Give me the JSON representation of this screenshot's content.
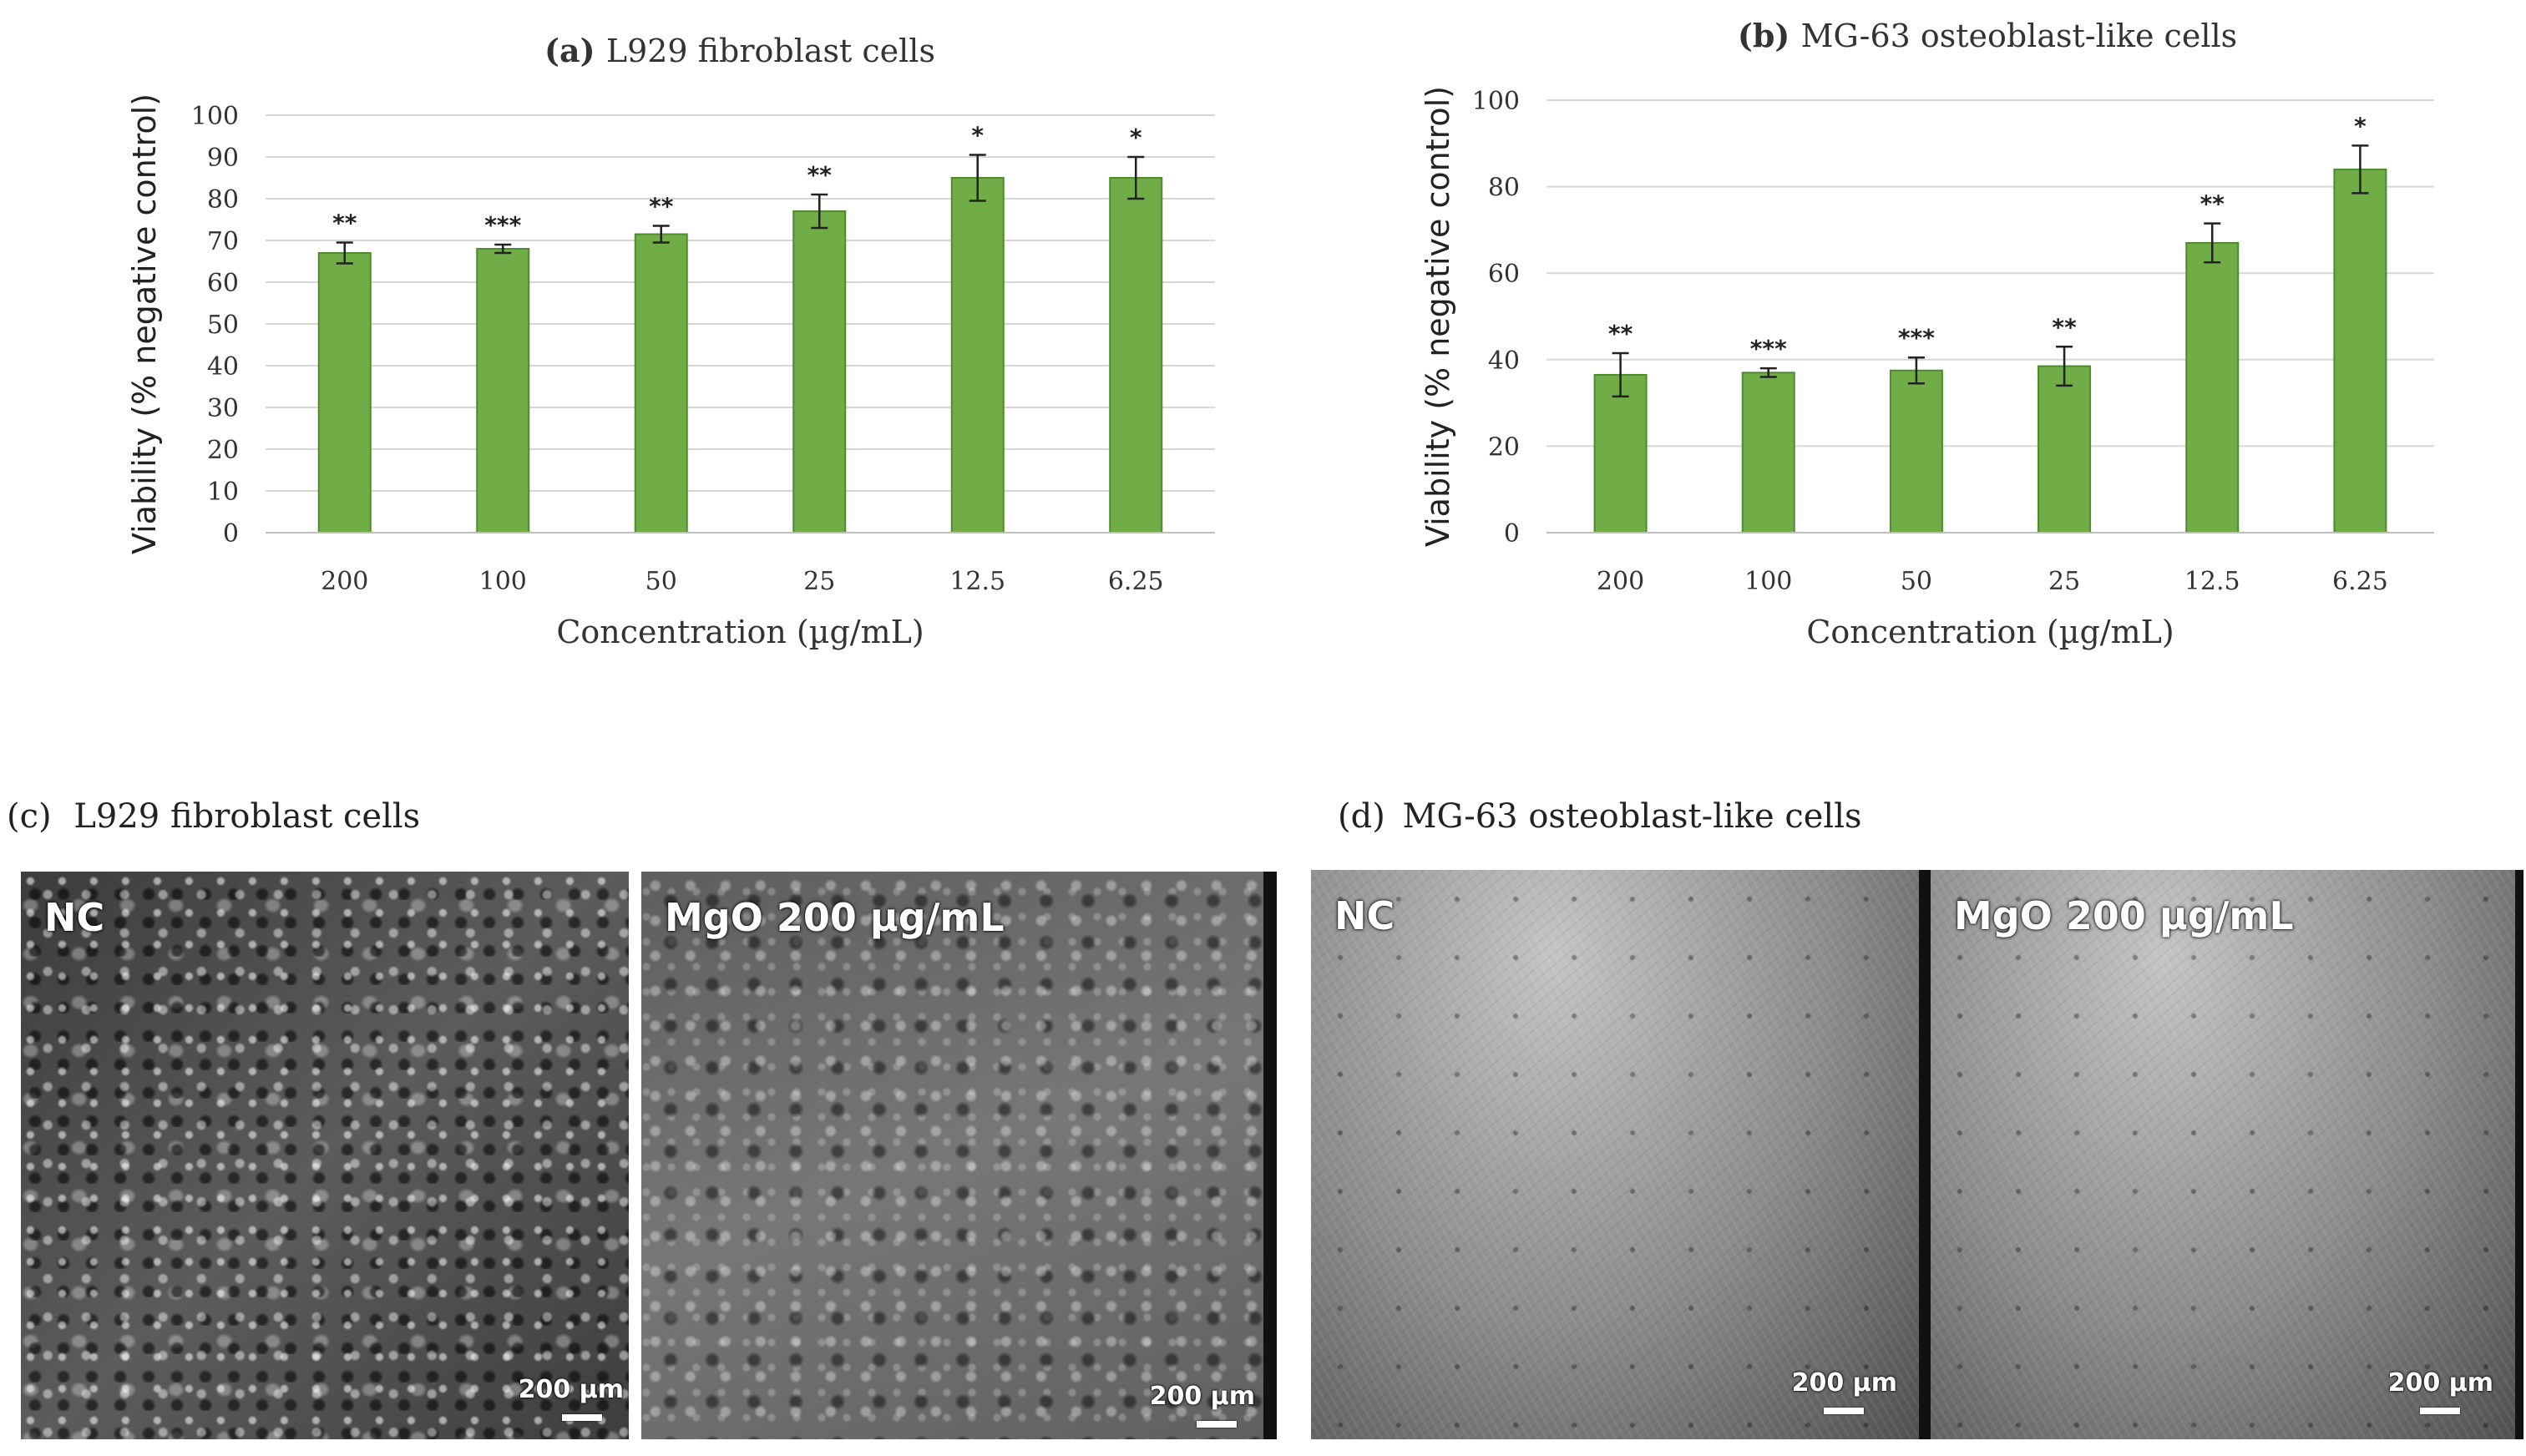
{
  "chart_data": [
    {
      "type": "bar",
      "panel": "(a)",
      "title": "L929 fibroblast cells",
      "xlabel": "Concentration (µg/mL)",
      "ylabel": "Viability (% negative control)",
      "ylim": [
        0,
        100
      ],
      "yticks": [
        0,
        10,
        20,
        30,
        40,
        50,
        60,
        70,
        80,
        90,
        100
      ],
      "categories": [
        "200",
        "100",
        "50",
        "25",
        "12.5",
        "6.25"
      ],
      "values": [
        67,
        68,
        71.5,
        77,
        85,
        85
      ],
      "errors": [
        2.5,
        1,
        2,
        4,
        5.5,
        5
      ],
      "significance": [
        "**",
        "***",
        "**",
        "**",
        "*",
        "*"
      ],
      "grid": true,
      "bar_color": "#70ad47"
    },
    {
      "type": "bar",
      "panel": "(b)",
      "title": "MG-63 osteoblast-like cells",
      "xlabel": "Concentration (µg/mL)",
      "ylabel": "Viability (% negative control)",
      "ylim": [
        0,
        100
      ],
      "yticks": [
        0,
        20,
        40,
        60,
        80,
        100
      ],
      "categories": [
        "200",
        "100",
        "50",
        "25",
        "12.5",
        "6.25"
      ],
      "values": [
        36.5,
        37,
        37.5,
        38.5,
        67,
        84
      ],
      "errors": [
        5,
        1,
        3,
        4.5,
        4.5,
        5.5
      ],
      "significance": [
        "**",
        "***",
        "***",
        "**",
        "**",
        "*"
      ],
      "grid": true,
      "bar_color": "#70ad47"
    }
  ],
  "panels": {
    "c": {
      "letter": "(c)",
      "title": "L929 fibroblast cells",
      "images": [
        {
          "label": "NC",
          "scale": "200 µm"
        },
        {
          "label": "MgO 200 µg/mL",
          "scale": "200 µm"
        }
      ]
    },
    "d": {
      "letter": "(d)",
      "title": "MG-63 osteoblast-like cells",
      "images": [
        {
          "label": "NC",
          "scale": "200 µm"
        },
        {
          "label": "MgO 200 µg/mL",
          "scale": "200 µm"
        }
      ]
    }
  }
}
